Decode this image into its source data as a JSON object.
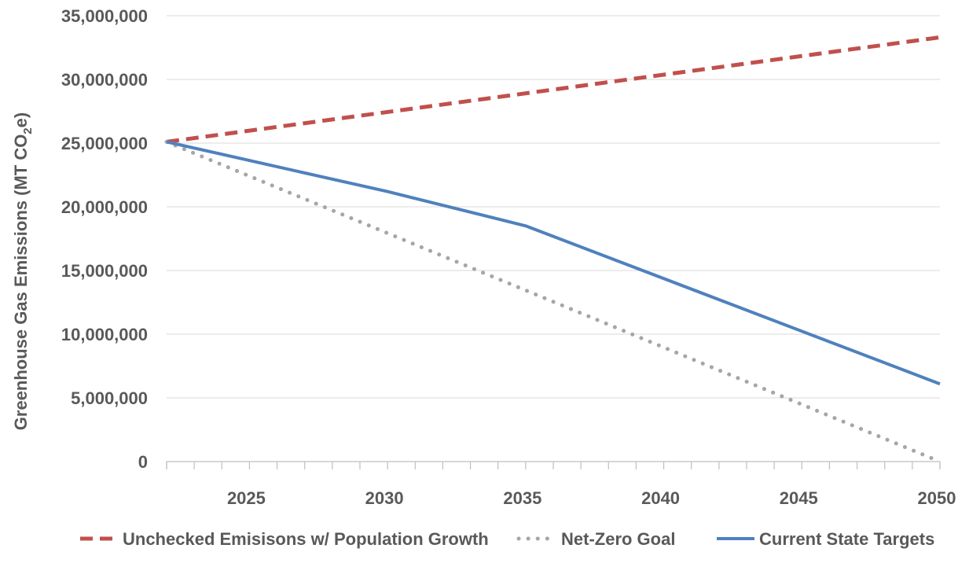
{
  "chart_data": {
    "type": "line",
    "title": "",
    "xlabel": "",
    "ylabel": "Greenhouse Gas Emissions (MT CO",
    "ylabel_sub": "2",
    "ylabel_suffix": "e)",
    "xlim": [
      2022,
      2050
    ],
    "ylim": [
      0,
      35000000
    ],
    "y_ticks": [
      0,
      5000000,
      10000000,
      15000000,
      20000000,
      25000000,
      30000000,
      35000000
    ],
    "y_tick_labels": [
      "0",
      "5,000,000",
      "10,000,000",
      "15,000,000",
      "20,000,000",
      "25,000,000",
      "30,000,000",
      "35,000,000"
    ],
    "x_ticks": [
      2025,
      2030,
      2035,
      2040,
      2045,
      2050
    ],
    "x_tick_labels": [
      "2025",
      "2030",
      "2035",
      "2040",
      "2045",
      "2050"
    ],
    "grid": "horizontal",
    "legend_position": "bottom",
    "series": [
      {
        "name": "Unchecked Emisisons w/ Population Growth",
        "style": "dashed",
        "color": "#c0504d",
        "x": [
          2022,
          2050
        ],
        "y": [
          25100000,
          33300000
        ]
      },
      {
        "name": "Net-Zero Goal",
        "style": "dotted",
        "color": "#a6a6a6",
        "x": [
          2022,
          2050
        ],
        "y": [
          25100000,
          0
        ]
      },
      {
        "name": "Current State Targets",
        "style": "solid",
        "color": "#4f81bd",
        "x": [
          2022,
          2030,
          2035,
          2050
        ],
        "y": [
          25100000,
          21200000,
          18500000,
          6100000
        ]
      }
    ]
  }
}
